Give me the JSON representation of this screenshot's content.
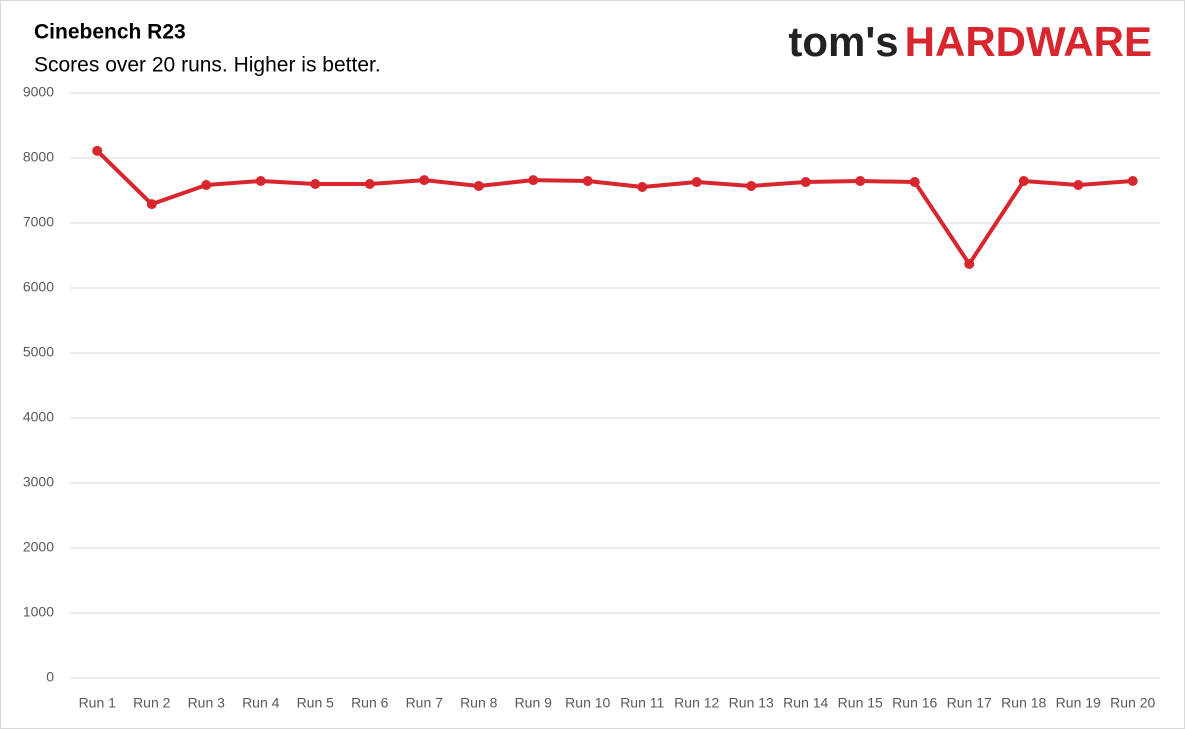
{
  "logo": {
    "prefix": "tom's",
    "name": "HARDWARE"
  },
  "chart_data": {
    "type": "line",
    "title": "Cinebench R23",
    "subtitle": "Scores over 20 runs. Higher is better.",
    "categories": [
      "Run 1",
      "Run 2",
      "Run 3",
      "Run 4",
      "Run 5",
      "Run 6",
      "Run 7",
      "Run 8",
      "Run 9",
      "Run 10",
      "Run 11",
      "Run 12",
      "Run 13",
      "Run 14",
      "Run 15",
      "Run 16",
      "Run 17",
      "Run 18",
      "Run 19",
      "Run 20"
    ],
    "series": [
      {
        "name": "Cinebench R23",
        "color": "#d7262d",
        "values": [
          8110,
          7290,
          7585,
          7646,
          7600,
          7600,
          7660,
          7570,
          7660,
          7646,
          7554,
          7630,
          7570,
          7630,
          7646,
          7630,
          6370,
          7646,
          7585,
          7646
        ]
      }
    ],
    "ylim": [
      0,
      9000
    ],
    "yticks": [
      0,
      1000,
      2000,
      3000,
      4000,
      5000,
      6000,
      7000,
      8000,
      9000
    ],
    "grid": true
  }
}
